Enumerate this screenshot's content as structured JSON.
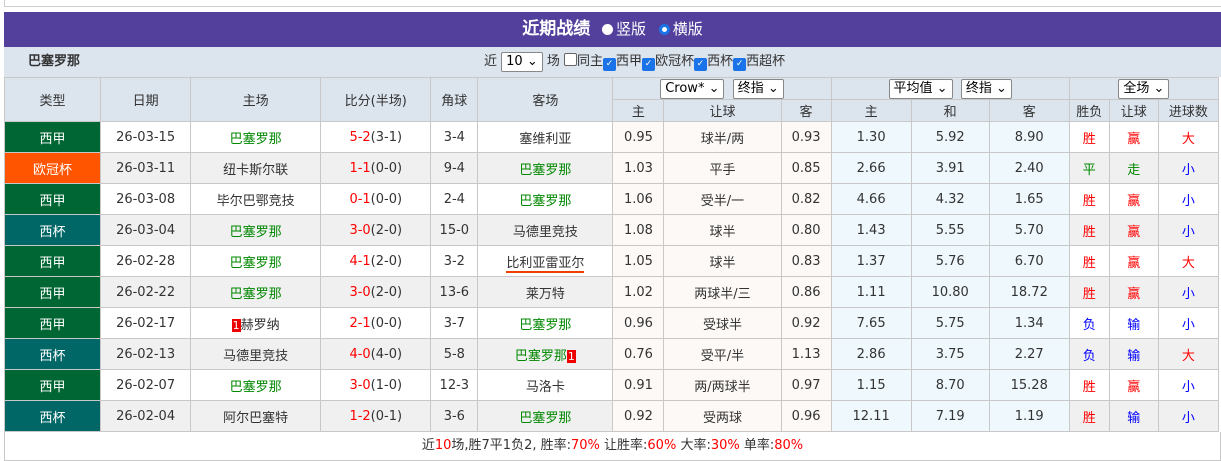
{
  "header": {
    "title": "近期战绩",
    "layout_options": [
      "竖版",
      "横版"
    ],
    "selected_layout": "横版"
  },
  "filter": {
    "team": "巴塞罗那",
    "prefix": "近",
    "count": "10",
    "suffix": "场",
    "same_home_label": "同主",
    "same_home_checked": false,
    "competitions": [
      {
        "label": "西甲",
        "checked": true
      },
      {
        "label": "欧冠杯",
        "checked": true
      },
      {
        "label": "西杯",
        "checked": true
      },
      {
        "label": "西超杯",
        "checked": true
      }
    ]
  },
  "table": {
    "columns": [
      "类型",
      "日期",
      "主场",
      "比分(半场)",
      "角球",
      "客场"
    ],
    "selectors": {
      "company": "Crow*",
      "ah_mode": "终指",
      "eu_company": "平均值",
      "eu_mode": "终指",
      "period": "全场"
    },
    "subcols": {
      "ah": [
        "主",
        "让球",
        "客"
      ],
      "eu": [
        "主",
        "和",
        "客"
      ],
      "res": [
        "胜负",
        "让球",
        "进球数"
      ]
    },
    "colors": {
      "西甲": "#006633",
      "欧冠杯": "#ff5500",
      "西杯": "#006666"
    },
    "rows": [
      {
        "type": "西甲",
        "date": "26-03-15",
        "home": "巴塞罗那",
        "home_tag": "",
        "score": "5-2",
        "half": "(3-1)",
        "corner": "3-4",
        "away": "塞维利亚",
        "away_tag": "",
        "ah_h": "0.95",
        "ah_line": "球半/两",
        "ah_a": "0.93",
        "eu_h": "1.30",
        "eu_d": "5.92",
        "eu_a": "8.90",
        "wl": "胜",
        "ah_res": "赢",
        "ou": "大"
      },
      {
        "type": "欧冠杯",
        "date": "26-03-11",
        "home": "纽卡斯尔联",
        "home_tag": "",
        "score": "1-1",
        "half": "(0-0)",
        "corner": "9-4",
        "away": "巴塞罗那",
        "away_tag": "",
        "ah_h": "1.03",
        "ah_line": "平手",
        "ah_a": "0.85",
        "eu_h": "2.66",
        "eu_d": "3.91",
        "eu_a": "2.40",
        "wl": "平",
        "ah_res": "走",
        "ou": "小"
      },
      {
        "type": "西甲",
        "date": "26-03-08",
        "home": "毕尔巴鄂竞技",
        "home_tag": "",
        "score": "0-1",
        "half": "(0-0)",
        "corner": "2-4",
        "away": "巴塞罗那",
        "away_tag": "",
        "ah_h": "1.06",
        "ah_line": "受半/一",
        "ah_a": "0.82",
        "eu_h": "4.66",
        "eu_d": "4.32",
        "eu_a": "1.65",
        "wl": "胜",
        "ah_res": "赢",
        "ou": "小"
      },
      {
        "type": "西杯",
        "date": "26-03-04",
        "home": "巴塞罗那",
        "home_tag": "",
        "score": "3-0",
        "half": "(2-0)",
        "corner": "15-0",
        "away": "马德里竞技",
        "away_tag": "",
        "ah_h": "1.08",
        "ah_line": "球半",
        "ah_a": "0.80",
        "eu_h": "1.43",
        "eu_d": "5.55",
        "eu_a": "5.70",
        "wl": "胜",
        "ah_res": "赢",
        "ou": "小"
      },
      {
        "type": "西甲",
        "date": "26-02-28",
        "home": "巴塞罗那",
        "home_tag": "",
        "score": "4-1",
        "half": "(2-0)",
        "corner": "3-2",
        "away": "比利亚雷亚尔",
        "away_tag": "",
        "ah_h": "1.05",
        "ah_line": "球半",
        "ah_a": "0.83",
        "eu_h": "1.37",
        "eu_d": "5.76",
        "eu_a": "6.70",
        "wl": "胜",
        "ah_res": "赢",
        "ou": "大"
      },
      {
        "type": "西甲",
        "date": "26-02-22",
        "home": "巴塞罗那",
        "home_tag": "",
        "score": "3-0",
        "half": "(2-0)",
        "corner": "13-6",
        "away": "莱万特",
        "away_tag": "",
        "ah_h": "1.02",
        "ah_line": "两球半/三",
        "ah_a": "0.86",
        "eu_h": "1.11",
        "eu_d": "10.80",
        "eu_a": "18.72",
        "wl": "胜",
        "ah_res": "赢",
        "ou": "小"
      },
      {
        "type": "西甲",
        "date": "26-02-17",
        "home": "赫罗纳",
        "home_tag": "1",
        "score": "2-1",
        "half": "(0-0)",
        "corner": "3-7",
        "away": "巴塞罗那",
        "away_tag": "",
        "ah_h": "0.96",
        "ah_line": "受球半",
        "ah_a": "0.92",
        "eu_h": "7.65",
        "eu_d": "5.75",
        "eu_a": "1.34",
        "wl": "负",
        "ah_res": "输",
        "ou": "小"
      },
      {
        "type": "西杯",
        "date": "26-02-13",
        "home": "马德里竞技",
        "home_tag": "",
        "score": "4-0",
        "half": "(4-0)",
        "corner": "5-8",
        "away": "巴塞罗那",
        "away_tag": "1",
        "ah_h": "0.76",
        "ah_line": "受平/半",
        "ah_a": "1.13",
        "eu_h": "2.86",
        "eu_d": "3.75",
        "eu_a": "2.27",
        "wl": "负",
        "ah_res": "输",
        "ou": "大"
      },
      {
        "type": "西甲",
        "date": "26-02-07",
        "home": "巴塞罗那",
        "home_tag": "",
        "score": "3-0",
        "half": "(1-0)",
        "corner": "12-3",
        "away": "马洛卡",
        "away_tag": "",
        "ah_h": "0.91",
        "ah_line": "两/两球半",
        "ah_a": "0.97",
        "eu_h": "1.15",
        "eu_d": "8.70",
        "eu_a": "15.28",
        "wl": "胜",
        "ah_res": "赢",
        "ou": "小"
      },
      {
        "type": "西杯",
        "date": "26-02-04",
        "home": "阿尔巴塞特",
        "home_tag": "",
        "score": "1-2",
        "half": "(0-1)",
        "corner": "3-6",
        "away": "巴塞罗那",
        "away_tag": "",
        "ah_h": "0.92",
        "ah_line": "受两球",
        "ah_a": "0.96",
        "eu_h": "12.11",
        "eu_d": "7.19",
        "eu_a": "1.19",
        "wl": "胜",
        "ah_res": "输",
        "ou": "小"
      }
    ]
  },
  "summary": {
    "p1": "近",
    "n": "10",
    "p2": "场,胜7平1负2, 胜率:",
    "win": "70%",
    "p3": " 让胜率:",
    "ah": "60%",
    "p4": " 大率:",
    "big": "30%",
    "p5": " 单率:",
    "odd": "80%"
  }
}
